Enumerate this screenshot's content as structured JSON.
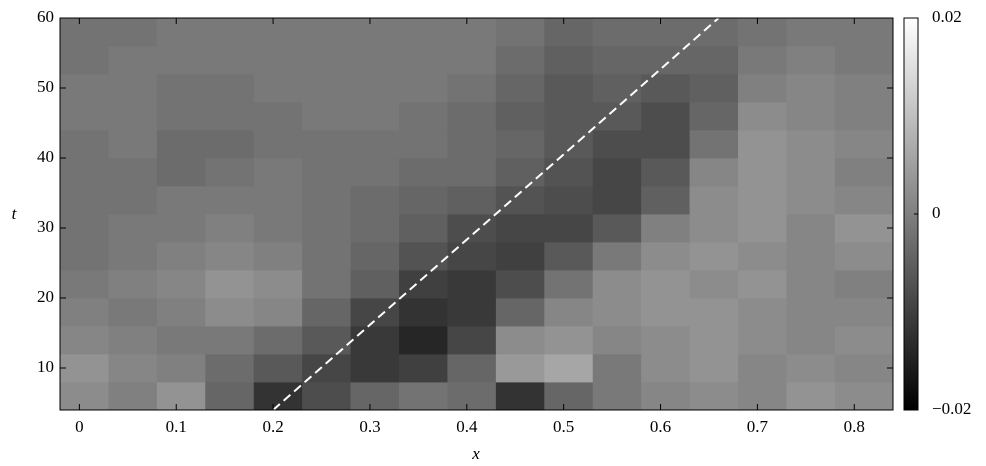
{
  "chart_data": {
    "type": "heatmap",
    "x_label": "x",
    "y_label": "t",
    "xlim": [
      -0.02,
      0.84
    ],
    "ylim": [
      4,
      60
    ],
    "xticks": [
      0,
      0.1,
      0.2,
      0.3,
      0.4,
      0.5,
      0.6,
      0.7,
      0.8
    ],
    "yticks": [
      10,
      20,
      30,
      40,
      50,
      60
    ],
    "x_edges": [
      -0.02,
      0.03,
      0.08,
      0.13,
      0.18,
      0.23,
      0.28,
      0.33,
      0.38,
      0.43,
      0.48,
      0.53,
      0.58,
      0.63,
      0.68,
      0.73,
      0.78,
      0.84
    ],
    "t_edges": [
      4,
      8,
      12,
      16,
      20,
      24,
      28,
      32,
      36,
      40,
      44,
      48,
      52,
      56,
      60
    ],
    "z": [
      [
        0.002,
        0,
        0.003,
        -0.004,
        -0.012,
        -0.008,
        -0.004,
        -0.002,
        -0.003,
        -0.012,
        -0.004,
        -0.001,
        0.001,
        0.002,
        0.001,
        0.003,
        0.002
      ],
      [
        0.003,
        0.001,
        0,
        -0.003,
        -0.006,
        -0.009,
        -0.011,
        -0.01,
        -0.004,
        0.004,
        0.006,
        -0.001,
        0.002,
        0.003,
        0.001,
        0.002,
        0.001
      ],
      [
        0.001,
        0,
        -0.001,
        -0.001,
        -0.003,
        -0.006,
        -0.011,
        -0.014,
        -0.009,
        0.002,
        0.003,
        0.001,
        0.002,
        0.003,
        0.002,
        0.001,
        0.002
      ],
      [
        0,
        -0.001,
        0,
        0.002,
        0.001,
        -0.004,
        -0.009,
        -0.012,
        -0.011,
        -0.004,
        0.001,
        0.002,
        0.003,
        0.003,
        0.002,
        0.001,
        0.001
      ],
      [
        -0.001,
        0,
        0.001,
        0.003,
        0.002,
        -0.002,
        -0.005,
        -0.01,
        -0.011,
        -0.008,
        -0.002,
        0.002,
        0.003,
        0.002,
        0.003,
        0.001,
        0
      ],
      [
        -0.002,
        -0.001,
        0,
        0.001,
        0,
        -0.002,
        -0.004,
        -0.007,
        -0.009,
        -0.01,
        -0.006,
        -0.001,
        0.002,
        0.003,
        0.002,
        0.001,
        0.002
      ],
      [
        -0.002,
        -0.001,
        -0.001,
        0,
        -0.001,
        -0.002,
        -0.003,
        -0.005,
        -0.008,
        -0.009,
        -0.009,
        -0.006,
        0,
        0.002,
        0.003,
        0.001,
        0.003
      ],
      [
        -0.002,
        -0.002,
        -0.001,
        -0.001,
        -0.001,
        -0.002,
        -0.003,
        -0.004,
        -0.005,
        -0.007,
        -0.008,
        -0.009,
        -0.005,
        0.002,
        0.003,
        0.002,
        0.001
      ],
      [
        -0.002,
        -0.002,
        -0.003,
        -0.002,
        -0.001,
        -0.002,
        -0.002,
        -0.003,
        -0.003,
        -0.005,
        -0.007,
        -0.009,
        -0.006,
        0.001,
        0.003,
        0.002,
        0
      ],
      [
        -0.002,
        -0.001,
        -0.003,
        -0.003,
        -0.002,
        -0.002,
        -0.002,
        -0.002,
        -0.003,
        -0.004,
        -0.006,
        -0.008,
        -0.008,
        -0.002,
        0.003,
        0.002,
        0.001
      ],
      [
        -0.001,
        -0.001,
        -0.002,
        -0.002,
        -0.002,
        -0.001,
        -0.001,
        -0.002,
        -0.003,
        -0.005,
        -0.006,
        -0.006,
        -0.008,
        -0.004,
        0.002,
        0.001,
        0
      ],
      [
        -0.001,
        -0.001,
        -0.002,
        -0.002,
        -0.001,
        -0.001,
        -0.001,
        -0.001,
        -0.002,
        -0.004,
        -0.006,
        -0.005,
        -0.006,
        -0.005,
        0,
        0.001,
        0
      ],
      [
        -0.002,
        -0.001,
        -0.001,
        -0.001,
        -0.001,
        -0.001,
        -0.001,
        -0.001,
        -0.001,
        -0.003,
        -0.005,
        -0.004,
        -0.004,
        -0.004,
        -0.001,
        0,
        -0.001
      ],
      [
        -0.002,
        -0.002,
        -0.001,
        -0.001,
        -0.001,
        -0.001,
        -0.001,
        -0.001,
        -0.001,
        -0.002,
        -0.004,
        -0.003,
        -0.003,
        -0.003,
        -0.002,
        -0.001,
        -0.001
      ]
    ],
    "zlim": [
      -0.02,
      0.02
    ],
    "zticks": [
      {
        "value": -0.02,
        "label": "−0.02"
      },
      0,
      0.02
    ],
    "colormap": [
      "#000000",
      "#ffffff"
    ],
    "reference_line": {
      "x": [
        0.2,
        0.66
      ],
      "t": [
        4,
        60
      ],
      "color": "#ffffff",
      "dashed": true
    }
  }
}
